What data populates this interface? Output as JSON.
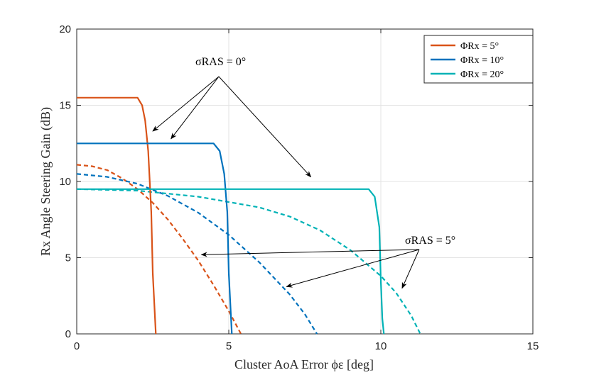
{
  "chart_data": {
    "type": "line",
    "title": "",
    "xlabel": "Cluster AoA Error ϕε [deg]",
    "ylabel": "Rx Angle Steering Gain (dB)",
    "xlim": [
      0,
      15
    ],
    "ylim": [
      0,
      20
    ],
    "xticks": [
      0,
      5,
      10,
      15
    ],
    "yticks": [
      0,
      5,
      10,
      15,
      20
    ],
    "xtick_labels": [
      "0",
      "5",
      "10",
      "15"
    ],
    "ytick_labels": [
      "0",
      "5",
      "10",
      "15",
      "20"
    ],
    "grid": true,
    "legend_position": "top-right",
    "series": [
      {
        "name": "ΦRx = 5°",
        "legend_label": "ΦRx = 5°",
        "color": "#D95319",
        "style": "solid",
        "x": [
          0,
          2.0,
          2.15,
          2.25,
          2.35,
          2.45,
          2.5,
          2.6
        ],
        "y": [
          15.5,
          15.5,
          15.0,
          14.0,
          12.0,
          8.0,
          4.0,
          0
        ]
      },
      {
        "name": "ΦRx = 10°",
        "color": "#0072BD",
        "style": "solid",
        "x": [
          0,
          4.5,
          4.7,
          4.85,
          4.95,
          5.0,
          5.1
        ],
        "y": [
          12.5,
          12.5,
          12.0,
          10.5,
          8.0,
          4.0,
          0
        ]
      },
      {
        "name": "ΦRx = 20°",
        "color": "#00B2B6",
        "style": "solid",
        "x": [
          0,
          9.6,
          9.8,
          9.95,
          10.0,
          10.05,
          10.1
        ],
        "y": [
          9.5,
          9.5,
          9.0,
          7.0,
          3.5,
          1.0,
          0
        ]
      },
      {
        "color": "#D95319",
        "style": "dashed",
        "x": [
          0,
          0.5,
          1.0,
          1.5,
          2.0,
          2.5,
          3.0,
          3.5,
          4.0,
          4.5,
          5.0,
          5.4
        ],
        "y": [
          11.1,
          11.0,
          10.75,
          10.2,
          9.5,
          8.6,
          7.5,
          6.2,
          4.8,
          3.2,
          1.5,
          0
        ]
      },
      {
        "color": "#0072BD",
        "style": "dashed",
        "x": [
          0,
          1.0,
          2.0,
          3.0,
          4.0,
          5.0,
          6.0,
          7.0,
          7.5,
          7.9
        ],
        "y": [
          10.5,
          10.3,
          9.85,
          9.05,
          7.95,
          6.5,
          4.7,
          2.6,
          1.3,
          0
        ]
      },
      {
        "color": "#00B2B6",
        "style": "dashed",
        "x": [
          0,
          2.0,
          4.0,
          6.0,
          7.0,
          8.0,
          9.0,
          10.0,
          10.5,
          11.0,
          11.3
        ],
        "y": [
          9.5,
          9.4,
          9.0,
          8.3,
          7.7,
          6.8,
          5.5,
          3.8,
          2.7,
          1.2,
          0
        ]
      }
    ],
    "annotations": [
      {
        "text": "σRAS = 0°",
        "at": [
          8.0,
          17.6
        ],
        "arrows": [
          [
            2.5,
            13.3
          ],
          [
            3.1,
            12.8
          ],
          [
            7.7,
            10.3
          ]
        ]
      },
      {
        "text": "σRAS = 5°",
        "at": [
          22.0,
          6.2
        ],
        "arrows": [
          [
            4.1,
            5.2
          ],
          [
            6.9,
            3.1
          ],
          [
            10.7,
            3.0
          ]
        ]
      }
    ]
  }
}
